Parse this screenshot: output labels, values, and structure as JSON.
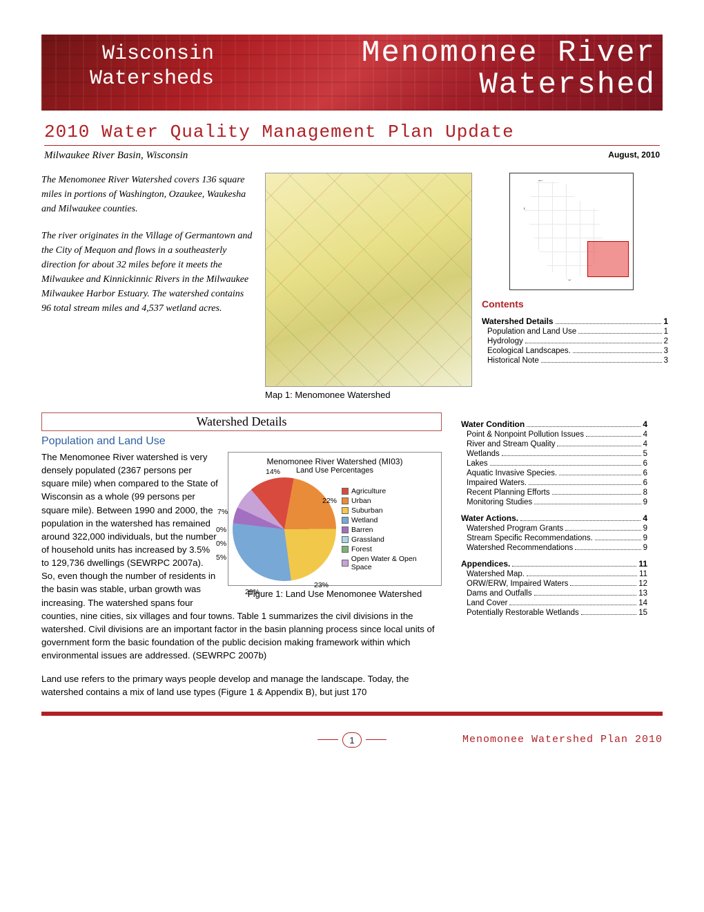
{
  "banner": {
    "left_line1": "Wisconsin",
    "left_line2": "Watersheds",
    "right_line1": "Menomonee River",
    "right_line2": "Watershed",
    "bg_gradient": [
      "#6e1415",
      "#b02025",
      "#c93a3f",
      "#a01e28",
      "#7a1520"
    ]
  },
  "plan_title": "2010 Water Quality Management Plan Update",
  "sub_location": "Milwaukee River Basin, Wisconsin",
  "sub_date": "August, 2010",
  "intro_p1": "The Menomonee River Watershed covers 136 square miles in portions of Washington, Ozaukee, Waukesha and Milwaukee counties.",
  "intro_p2": "The river originates in the Village of Germantown and the City of Mequon and flows in a southeasterly direction for about 32 miles before it meets the Milwaukee and Kinnickinnic Rivers in the Milwaukee Milwaukee Harbor Estuary. The watershed contains 96 total stream miles and 4,537 wetland acres.",
  "map_caption": "Map 1: Menomonee Watershed",
  "contents_title": "Contents",
  "toc": [
    {
      "section": "Watershed Details",
      "page": "1",
      "items": [
        {
          "label": "Population and Land Use",
          "page": "1"
        },
        {
          "label": "Hydrology",
          "page": "2"
        },
        {
          "label": "Ecological Landscapes.",
          "page": "3"
        },
        {
          "label": "Historical Note",
          "page": "3"
        }
      ]
    },
    {
      "section": "Water Condition",
      "page": "4",
      "items": [
        {
          "label": "Point & Nonpoint Pollution Issues",
          "page": "4"
        },
        {
          "label": "River and Stream Quality",
          "page": "4"
        },
        {
          "label": "Wetlands",
          "page": "5"
        },
        {
          "label": "Lakes",
          "page": "6"
        },
        {
          "label": "Aquatic Invasive Species.",
          "page": "6"
        },
        {
          "label": "Impaired Waters.",
          "page": "6"
        },
        {
          "label": "Recent Planning Efforts",
          "page": "8"
        },
        {
          "label": "Monitoring Studies",
          "page": "9"
        }
      ]
    },
    {
      "section": "Water Actions.",
      "page": "4",
      "items": [
        {
          "label": "Watershed Program Grants",
          "page": "9"
        },
        {
          "label": "Stream Specific Recommendations.",
          "page": "9"
        },
        {
          "label": "Watershed Recommendations",
          "page": "9"
        }
      ]
    },
    {
      "section": "Appendices.",
      "page": "11",
      "items": [
        {
          "label": "Watershed Map.",
          "page": "11"
        },
        {
          "label": "ORW/ERW, Impaired Waters",
          "page": "12"
        },
        {
          "label": "Dams and Outfalls",
          "page": "13"
        },
        {
          "label": "Land Cover",
          "page": "14"
        },
        {
          "label": "Potentially Restorable Wetlands",
          "page": "15"
        }
      ]
    }
  ],
  "details_header": "Watershed Details",
  "section_sub": "Population and Land Use",
  "body1": "The Menomonee River watershed is very densely populated (2367 persons per square mile) when compared to the State of Wisconsin as a whole (99 persons per square mile). Between 1990 and 2000, the population in the watershed has remained around 322,000 individuals, but the number of household units has increased by 3.5% to 129,736 dwellings (SEWRPC 2007a). So, even though the number of residents in the basin was stable, urban growth was increasing. The watershed spans four counties, nine cities, six villages and four towns. Table 1 summarizes the civil divisions in the watershed. Civil divisions are an important factor in the basin planning process since local units of government form the basic foundation of the public decision making framework within which environmental issues are addressed. (SEWRPC 2007b)",
  "body2": "Land use refers to the primary ways people develop and manage the landscape. Today, the watershed contains a mix of land use types (Figure 1 & Appendix B), but just 170",
  "chart": {
    "type": "pie",
    "title": "Menomonee River Watershed (MI03)",
    "subtitle": "Land Use Percentages",
    "caption": "Figure 1: Land Use Menomonee Watershed",
    "background_color": "#ffffff",
    "border_color": "#888888",
    "label_fontsize": 10.5,
    "slices": [
      {
        "label": "Agriculture",
        "pct": 14,
        "color": "#d94a3e",
        "callout": "14%"
      },
      {
        "label": "Urban",
        "pct": 22,
        "color": "#e98c3a",
        "callout": "22%"
      },
      {
        "label": "Suburban",
        "pct": 23,
        "color": "#f2c84b",
        "callout": "23%"
      },
      {
        "label": "Wetland",
        "pct": 29,
        "color": "#78a8d6",
        "callout": "29%"
      },
      {
        "label": "Barren",
        "pct": 5,
        "color": "#a36fc0",
        "callout": "5%"
      },
      {
        "label": "Grassland",
        "pct": 0,
        "color": "#a8d8e6",
        "callout": "0%"
      },
      {
        "label": "Forest",
        "pct": 0,
        "color": "#7fb272",
        "callout": "0%"
      },
      {
        "label": "Open Water & Open Space",
        "pct": 7,
        "color": "#c6a2d6",
        "callout": "7%"
      }
    ]
  },
  "footer": {
    "page_number": "1",
    "doc_title": "Menomonee Watershed Plan 2010"
  },
  "colors": {
    "accent_red": "#b02025",
    "link_blue": "#3060a0"
  }
}
